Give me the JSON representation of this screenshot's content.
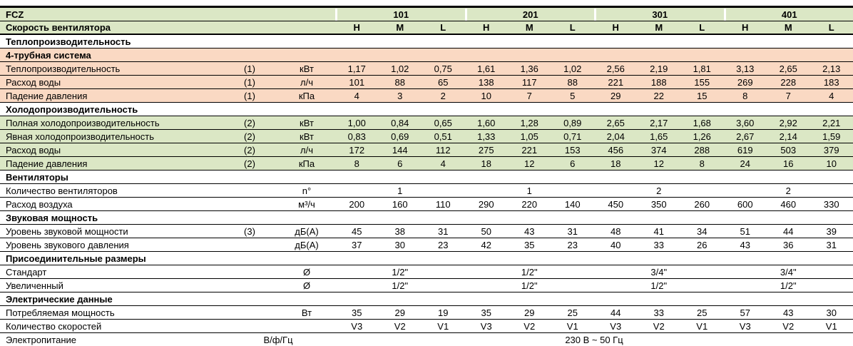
{
  "colors": {
    "green": "#dbe7c5",
    "pink": "#fad9c3",
    "border": "#000000",
    "background": "#ffffff"
  },
  "table": {
    "brand": "FCZ",
    "models": [
      "101",
      "201",
      "301",
      "401"
    ],
    "speed_row_label": "Скорость вентилятора",
    "speeds": [
      "H",
      "M",
      "L"
    ],
    "rows": [
      {
        "type": "section",
        "bg": "white",
        "label": "Теплопроизводительность"
      },
      {
        "type": "section",
        "bg": "pink",
        "label": "4-трубная система"
      },
      {
        "type": "data",
        "bg": "pink",
        "label": "Теплопроизводительность",
        "note": "(1)",
        "unit": "кВт",
        "values": [
          "1,17",
          "1,02",
          "0,75",
          "1,61",
          "1,36",
          "1,02",
          "2,56",
          "2,19",
          "1,81",
          "3,13",
          "2,65",
          "2,13"
        ]
      },
      {
        "type": "data",
        "bg": "pink",
        "label": "Расход воды",
        "note": "(1)",
        "unit": "л/ч",
        "values": [
          "101",
          "88",
          "65",
          "138",
          "117",
          "88",
          "221",
          "188",
          "155",
          "269",
          "228",
          "183"
        ]
      },
      {
        "type": "data",
        "bg": "pink",
        "label": "Падение давления",
        "note": "(1)",
        "unit": "кПа",
        "values": [
          "4",
          "3",
          "2",
          "10",
          "7",
          "5",
          "29",
          "22",
          "15",
          "8",
          "7",
          "4"
        ]
      },
      {
        "type": "section",
        "bg": "white",
        "label": "Холодопроизводительность"
      },
      {
        "type": "data",
        "bg": "green",
        "label": "Полная холодопроизводительность",
        "note": "(2)",
        "unit": "кВт",
        "values": [
          "1,00",
          "0,84",
          "0,65",
          "1,60",
          "1,28",
          "0,89",
          "2,65",
          "2,17",
          "1,68",
          "3,60",
          "2,92",
          "2,21"
        ]
      },
      {
        "type": "data",
        "bg": "green",
        "label": "Явная холодопроизводительность",
        "note": "(2)",
        "unit": "кВт",
        "values": [
          "0,83",
          "0,69",
          "0,51",
          "1,33",
          "1,05",
          "0,71",
          "2,04",
          "1,65",
          "1,26",
          "2,67",
          "2,14",
          "1,59"
        ]
      },
      {
        "type": "data",
        "bg": "green",
        "label": "Расход воды",
        "note": "(2)",
        "unit": "л/ч",
        "values": [
          "172",
          "144",
          "112",
          "275",
          "221",
          "153",
          "456",
          "374",
          "288",
          "619",
          "503",
          "379"
        ]
      },
      {
        "type": "data",
        "bg": "green",
        "label": "Падение давления",
        "note": "(2)",
        "unit": "кПа",
        "values": [
          "8",
          "6",
          "4",
          "18",
          "12",
          "6",
          "18",
          "12",
          "8",
          "24",
          "16",
          "10"
        ]
      },
      {
        "type": "section",
        "bg": "white",
        "label": "Вентиляторы"
      },
      {
        "type": "group",
        "bg": "white",
        "label": "Количество вентиляторов",
        "note": "",
        "unit": "n°",
        "values": [
          "1",
          "1",
          "2",
          "2"
        ]
      },
      {
        "type": "data",
        "bg": "white",
        "label": "Расход воздуха",
        "note": "",
        "unit": "м³/ч",
        "values": [
          "200",
          "160",
          "110",
          "290",
          "220",
          "140",
          "450",
          "350",
          "260",
          "600",
          "460",
          "330"
        ]
      },
      {
        "type": "section",
        "bg": "white",
        "label": "Звуковая мощность"
      },
      {
        "type": "data",
        "bg": "white",
        "label": "Уровень звуковой мощности",
        "note": "(3)",
        "unit": "дБ(А)",
        "values": [
          "45",
          "38",
          "31",
          "50",
          "43",
          "31",
          "48",
          "41",
          "34",
          "51",
          "44",
          "39"
        ]
      },
      {
        "type": "data",
        "bg": "white",
        "label": "Уровень звукового давления",
        "note": "",
        "unit": "дБ(А)",
        "values": [
          "37",
          "30",
          "23",
          "42",
          "35",
          "23",
          "40",
          "33",
          "26",
          "43",
          "36",
          "31"
        ]
      },
      {
        "type": "section",
        "bg": "white",
        "label": "Присоединительные размеры"
      },
      {
        "type": "group",
        "bg": "white",
        "label": "Стандарт",
        "note": "",
        "unit": "Ø",
        "values": [
          "1/2\"",
          "1/2\"",
          "3/4\"",
          "3/4\""
        ]
      },
      {
        "type": "group",
        "bg": "white",
        "label": "Увеличенный",
        "note": "",
        "unit": "Ø",
        "values": [
          "1/2\"",
          "1/2\"",
          "1/2\"",
          "1/2\""
        ]
      },
      {
        "type": "section",
        "bg": "white",
        "label": "Электрические данные"
      },
      {
        "type": "data",
        "bg": "white",
        "label": "Потребляемая мощность",
        "note": "",
        "unit": "Вт",
        "values": [
          "35",
          "29",
          "19",
          "35",
          "29",
          "25",
          "44",
          "33",
          "25",
          "57",
          "43",
          "30"
        ]
      },
      {
        "type": "data",
        "bg": "white",
        "label": "Количество скоростей",
        "note": "",
        "unit": "",
        "values": [
          "V3",
          "V2",
          "V1",
          "V3",
          "V2",
          "V1",
          "V3",
          "V2",
          "V1",
          "V3",
          "V2",
          "V1"
        ]
      },
      {
        "type": "span",
        "bg": "white",
        "label": "Электропитание",
        "unit": "В/ф/Гц",
        "value": "230 В ~ 50 Гц"
      }
    ]
  }
}
